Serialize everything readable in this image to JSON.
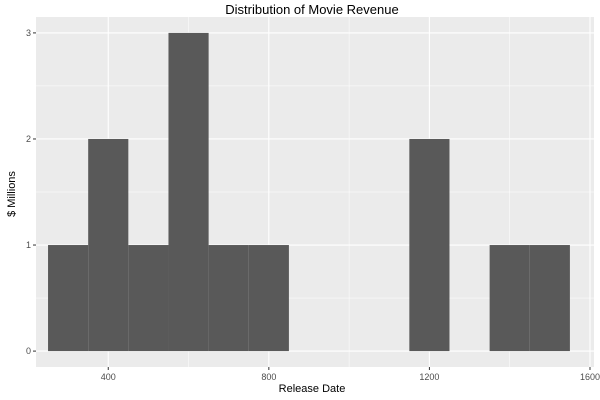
{
  "chart_data": {
    "type": "bar",
    "title": "Distribution of Movie Revenue",
    "xlabel": "Release Date",
    "ylabel": "$ Millions",
    "xlim": [
      220,
      1610
    ],
    "ylim": [
      -0.15,
      3.15
    ],
    "x_ticks": [
      400,
      800,
      1200,
      1600
    ],
    "y_ticks": [
      0,
      1,
      2,
      3
    ],
    "grid": true,
    "bin_width": 100,
    "bins": [
      {
        "start": 250,
        "end": 350,
        "count": 1
      },
      {
        "start": 350,
        "end": 450,
        "count": 2
      },
      {
        "start": 450,
        "end": 550,
        "count": 1
      },
      {
        "start": 550,
        "end": 650,
        "count": 3
      },
      {
        "start": 650,
        "end": 750,
        "count": 1
      },
      {
        "start": 750,
        "end": 850,
        "count": 1
      },
      {
        "start": 850,
        "end": 950,
        "count": 0
      },
      {
        "start": 950,
        "end": 1050,
        "count": 0
      },
      {
        "start": 1050,
        "end": 1150,
        "count": 0
      },
      {
        "start": 1150,
        "end": 1250,
        "count": 2
      },
      {
        "start": 1250,
        "end": 1350,
        "count": 0
      },
      {
        "start": 1350,
        "end": 1450,
        "count": 1
      },
      {
        "start": 1450,
        "end": 1550,
        "count": 1
      }
    ],
    "colors": {
      "panel": "#EBEBEB",
      "grid_major": "#FFFFFF",
      "bar": "#595959",
      "tick": "#333333"
    }
  }
}
